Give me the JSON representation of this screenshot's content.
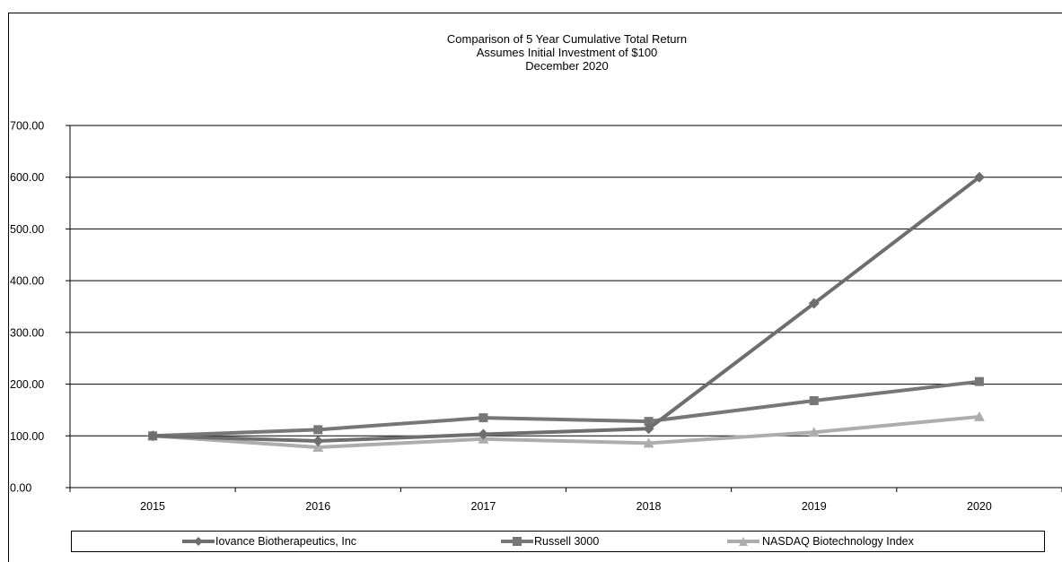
{
  "chart_data": {
    "type": "line",
    "title_lines": [
      "Comparison  of 5 Year Cumulative  Total Return",
      "Assumes Initial Investment  of $100",
      "December  2020"
    ],
    "categories": [
      "2015",
      "2016",
      "2017",
      "2018",
      "2019",
      "2020"
    ],
    "y_ticks": [
      "0.00",
      "100.00",
      "200.00",
      "300.00",
      "400.00",
      "500.00",
      "600.00",
      "700.00"
    ],
    "ylim": [
      0,
      700
    ],
    "grid": "horizontal",
    "legend_position": "bottom",
    "series": [
      {
        "name": "Iovance Biotherapeutics, Inc",
        "values": [
          100,
          90,
          103,
          114,
          356,
          600
        ],
        "marker": "diamond",
        "color": "#6e6e6e"
      },
      {
        "name": "Russell 3000",
        "values": [
          100,
          112,
          135,
          128,
          168,
          205
        ],
        "marker": "square",
        "color": "#777777"
      },
      {
        "name": "NASDAQ Biotechnology Index",
        "values": [
          100,
          78,
          94,
          86,
          107,
          137
        ],
        "marker": "triangle",
        "color": "#adadad"
      }
    ]
  }
}
